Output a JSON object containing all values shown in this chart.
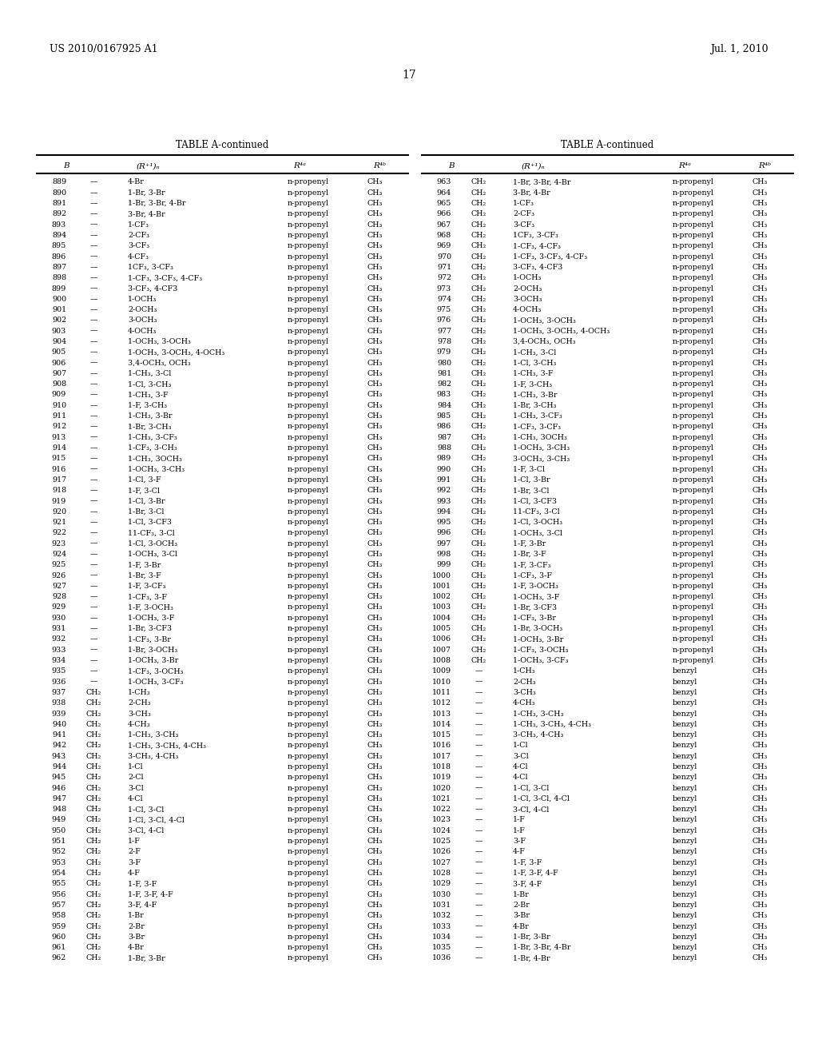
{
  "page_number": "17",
  "patent_number": "US 2010/0167925 A1",
  "patent_date": "Jul. 1, 2010",
  "table_title": "TABLE A-continued",
  "left_rows": [
    [
      "889",
      "—",
      "4-Br",
      "n-propenyl",
      "CH₃"
    ],
    [
      "890",
      "—",
      "1-Br, 3-Br",
      "n-propenyl",
      "CH₃"
    ],
    [
      "891",
      "—",
      "1-Br, 3-Br, 4-Br",
      "n-propenyl",
      "CH₃"
    ],
    [
      "892",
      "—",
      "3-Br, 4-Br",
      "n-propenyl",
      "CH₃"
    ],
    [
      "893",
      "—",
      "1-CF₃",
      "n-propenyl",
      "CH₃"
    ],
    [
      "894",
      "—",
      "2-CF₃",
      "n-propenyl",
      "CH₃"
    ],
    [
      "895",
      "—",
      "3-CF₃",
      "n-propenyl",
      "CH₃"
    ],
    [
      "896",
      "—",
      "4-CF₃",
      "n-propenyl",
      "CH₃"
    ],
    [
      "897",
      "—",
      "1CF₃, 3-CF₃",
      "n-propenyl",
      "CH₃"
    ],
    [
      "898",
      "—",
      "1-CF₃, 3-CF₃, 4-CF₃",
      "n-propenyl",
      "CH₃"
    ],
    [
      "899",
      "—",
      "3-CF₃, 4-CF3",
      "n-propenyl",
      "CH₃"
    ],
    [
      "900",
      "—",
      "1-OCH₃",
      "n-propenyl",
      "CH₃"
    ],
    [
      "901",
      "—",
      "2-OCH₃",
      "n-propenyl",
      "CH₃"
    ],
    [
      "902",
      "—",
      "3-OCH₃",
      "n-propenyl",
      "CH₃"
    ],
    [
      "903",
      "—",
      "4-OCH₃",
      "n-propenyl",
      "CH₃"
    ],
    [
      "904",
      "—",
      "1-OCH₃, 3-OCH₃",
      "n-propenyl",
      "CH₃"
    ],
    [
      "905",
      "—",
      "1-OCH₃, 3-OCH₃, 4-OCH₃",
      "n-propenyl",
      "CH₃"
    ],
    [
      "906",
      "—",
      "3,4-OCH₃, OCH₃",
      "n-propenyl",
      "CH₃"
    ],
    [
      "907",
      "—",
      "1-CH₃, 3-Cl",
      "n-propenyl",
      "CH₃"
    ],
    [
      "908",
      "—",
      "1-Cl, 3-CH₃",
      "n-propenyl",
      "CH₃"
    ],
    [
      "909",
      "—",
      "1-CH₃, 3-F",
      "n-propenyl",
      "CH₃"
    ],
    [
      "910",
      "—",
      "1-F, 3-CH₃",
      "n-propenyl",
      "CH₃"
    ],
    [
      "911",
      "—",
      "1-CH₃, 3-Br",
      "n-propenyl",
      "CH₃"
    ],
    [
      "912",
      "—",
      "1-Br, 3-CH₃",
      "n-propenyl",
      "CH₃"
    ],
    [
      "913",
      "—",
      "1-CH₃, 3-CF₃",
      "n-propenyl",
      "CH₃"
    ],
    [
      "914",
      "—",
      "1-CF₃, 3-CH₃",
      "n-propenyl",
      "CH₃"
    ],
    [
      "915",
      "—",
      "1-CH₃, 3OCH₃",
      "n-propenyl",
      "CH₃"
    ],
    [
      "916",
      "—",
      "1-OCH₃, 3-CH₃",
      "n-propenyl",
      "CH₃"
    ],
    [
      "917",
      "—",
      "1-Cl, 3-F",
      "n-propenyl",
      "CH₃"
    ],
    [
      "918",
      "—",
      "1-F, 3-Cl",
      "n-propenyl",
      "CH₃"
    ],
    [
      "919",
      "—",
      "1-Cl, 3-Br",
      "n-propenyl",
      "CH₃"
    ],
    [
      "920",
      "—",
      "1-Br, 3-Cl",
      "n-propenyl",
      "CH₃"
    ],
    [
      "921",
      "—",
      "1-Cl, 3-CF3",
      "n-propenyl",
      "CH₃"
    ],
    [
      "922",
      "—",
      "11-CF₃, 3-Cl",
      "n-propenyl",
      "CH₃"
    ],
    [
      "923",
      "—",
      "1-Cl, 3-OCH₃",
      "n-propenyl",
      "CH₃"
    ],
    [
      "924",
      "—",
      "1-OCH₃, 3-Cl",
      "n-propenyl",
      "CH₃"
    ],
    [
      "925",
      "—",
      "1-F, 3-Br",
      "n-propenyl",
      "CH₃"
    ],
    [
      "926",
      "—",
      "1-Br, 3-F",
      "n-propenyl",
      "CH₃"
    ],
    [
      "927",
      "—",
      "1-F, 3-CF₃",
      "n-propenyl",
      "CH₃"
    ],
    [
      "928",
      "—",
      "1-CF₃, 3-F",
      "n-propenyl",
      "CH₃"
    ],
    [
      "929",
      "—",
      "1-F, 3-OCH₃",
      "n-propenyl",
      "CH₃"
    ],
    [
      "930",
      "—",
      "1-OCH₃, 3-F",
      "n-propenyl",
      "CH₃"
    ],
    [
      "931",
      "—",
      "1-Br, 3-CF3",
      "n-propenyl",
      "CH₃"
    ],
    [
      "932",
      "—",
      "1-CF₃, 3-Br",
      "n-propenyl",
      "CH₃"
    ],
    [
      "933",
      "—",
      "1-Br, 3-OCH₃",
      "n-propenyl",
      "CH₃"
    ],
    [
      "934",
      "—",
      "1-OCH₃, 3-Br",
      "n-propenyl",
      "CH₃"
    ],
    [
      "935",
      "—",
      "1-CF₃, 3-OCH₃",
      "n-propenyl",
      "CH₃"
    ],
    [
      "936",
      "—",
      "1-OCH₃, 3-CF₃",
      "n-propenyl",
      "CH₃"
    ],
    [
      "937",
      "CH₂",
      "1-CH₃",
      "n-propenyl",
      "CH₃"
    ],
    [
      "938",
      "CH₂",
      "2-CH₃",
      "n-propenyl",
      "CH₃"
    ],
    [
      "939",
      "CH₂",
      "3-CH₃",
      "n-propenyl",
      "CH₃"
    ],
    [
      "940",
      "CH₂",
      "4-CH₃",
      "n-propenyl",
      "CH₃"
    ],
    [
      "941",
      "CH₂",
      "1-CH₃, 3-CH₃",
      "n-propenyl",
      "CH₃"
    ],
    [
      "942",
      "CH₂",
      "1-CH₃, 3-CH₃, 4-CH₃",
      "n-propenyl",
      "CH₃"
    ],
    [
      "943",
      "CH₂",
      "3-CH₃, 4-CH₃",
      "n-propenyl",
      "CH₃"
    ],
    [
      "944",
      "CH₂",
      "1-Cl",
      "n-propenyl",
      "CH₃"
    ],
    [
      "945",
      "CH₂",
      "2-Cl",
      "n-propenyl",
      "CH₃"
    ],
    [
      "946",
      "CH₂",
      "3-Cl",
      "n-propenyl",
      "CH₃"
    ],
    [
      "947",
      "CH₂",
      "4-Cl",
      "n-propenyl",
      "CH₃"
    ],
    [
      "948",
      "CH₂",
      "1-Cl, 3-Cl",
      "n-propenyl",
      "CH₃"
    ],
    [
      "949",
      "CH₂",
      "1-Cl, 3-Cl, 4-Cl",
      "n-propenyl",
      "CH₃"
    ],
    [
      "950",
      "CH₂",
      "3-Cl, 4-Cl",
      "n-propenyl",
      "CH₃"
    ],
    [
      "951",
      "CH₂",
      "1-F",
      "n-propenyl",
      "CH₃"
    ],
    [
      "952",
      "CH₂",
      "2-F",
      "n-propenyl",
      "CH₃"
    ],
    [
      "953",
      "CH₂",
      "3-F",
      "n-propenyl",
      "CH₃"
    ],
    [
      "954",
      "CH₂",
      "4-F",
      "n-propenyl",
      "CH₃"
    ],
    [
      "955",
      "CH₂",
      "1-F, 3-F",
      "n-propenyl",
      "CH₃"
    ],
    [
      "956",
      "CH₂",
      "1-F, 3-F, 4-F",
      "n-propenyl",
      "CH₃"
    ],
    [
      "957",
      "CH₂",
      "3-F, 4-F",
      "n-propenyl",
      "CH₃"
    ],
    [
      "958",
      "CH₂",
      "1-Br",
      "n-propenyl",
      "CH₃"
    ],
    [
      "959",
      "CH₂",
      "2-Br",
      "n-propenyl",
      "CH₃"
    ],
    [
      "960",
      "CH₂",
      "3-Br",
      "n-propenyl",
      "CH₃"
    ],
    [
      "961",
      "CH₂",
      "4-Br",
      "n-propenyl",
      "CH₃"
    ],
    [
      "962",
      "CH₂",
      "1-Br, 3-Br",
      "n-propenyl",
      "CH₃"
    ]
  ],
  "right_rows": [
    [
      "963",
      "CH₂",
      "1-Br, 3-Br, 4-Br",
      "n-propenyl",
      "CH₃"
    ],
    [
      "964",
      "CH₂",
      "3-Br, 4-Br",
      "n-propenyl",
      "CH₃"
    ],
    [
      "965",
      "CH₂",
      "1-CF₃",
      "n-propenyl",
      "CH₃"
    ],
    [
      "966",
      "CH₂",
      "2-CF₃",
      "n-propenyl",
      "CH₃"
    ],
    [
      "967",
      "CH₂",
      "3-CF₃",
      "n-propenyl",
      "CH₃"
    ],
    [
      "968",
      "CH₂",
      "1CF₃, 3-CF₃",
      "n-propenyl",
      "CH₃"
    ],
    [
      "969",
      "CH₂",
      "1-CF₃, 4-CF₃",
      "n-propenyl",
      "CH₃"
    ],
    [
      "970",
      "CH₂",
      "1-CF₃, 3-CF₃, 4-CF₃",
      "n-propenyl",
      "CH₃"
    ],
    [
      "971",
      "CH₂",
      "3-CF₃, 4-CF3",
      "n-propenyl",
      "CH₃"
    ],
    [
      "972",
      "CH₂",
      "1-OCH₃",
      "n-propenyl",
      "CH₃"
    ],
    [
      "973",
      "CH₂",
      "2-OCH₃",
      "n-propenyl",
      "CH₃"
    ],
    [
      "974",
      "CH₂",
      "3-OCH₃",
      "n-propenyl",
      "CH₃"
    ],
    [
      "975",
      "CH₂",
      "4-OCH₃",
      "n-propenyl",
      "CH₃"
    ],
    [
      "976",
      "CH₂",
      "1-OCH₃, 3-OCH₃",
      "n-propenyl",
      "CH₃"
    ],
    [
      "977",
      "CH₂",
      "1-OCH₃, 3-OCH₃, 4-OCH₃",
      "n-propenyl",
      "CH₃"
    ],
    [
      "978",
      "CH₂",
      "3,4-OCH₃, OCH₃",
      "n-propenyl",
      "CH₃"
    ],
    [
      "979",
      "CH₂",
      "1-CH₃, 3-Cl",
      "n-propenyl",
      "CH₃"
    ],
    [
      "980",
      "CH₂",
      "1-Cl, 3-CH₃",
      "n-propenyl",
      "CH₃"
    ],
    [
      "981",
      "CH₂",
      "1-CH₃, 3-F",
      "n-propenyl",
      "CH₃"
    ],
    [
      "982",
      "CH₂",
      "1-F, 3-CH₃",
      "n-propenyl",
      "CH₃"
    ],
    [
      "983",
      "CH₂",
      "1-CH₃, 3-Br",
      "n-propenyl",
      "CH₃"
    ],
    [
      "984",
      "CH₂",
      "1-Br, 3-CH₃",
      "n-propenyl",
      "CH₃"
    ],
    [
      "985",
      "CH₂",
      "1-CH₃, 3-CF₃",
      "n-propenyl",
      "CH₃"
    ],
    [
      "986",
      "CH₂",
      "1-CF₃, 3-CF₃",
      "n-propenyl",
      "CH₃"
    ],
    [
      "987",
      "CH₂",
      "1-CH₃, 3OCH₃",
      "n-propenyl",
      "CH₃"
    ],
    [
      "988",
      "CH₂",
      "1-OCH₃, 3-CH₃",
      "n-propenyl",
      "CH₃"
    ],
    [
      "989",
      "CH₂",
      "3-OCH₃, 3-CH₃",
      "n-propenyl",
      "CH₃"
    ],
    [
      "990",
      "CH₂",
      "1-F, 3-Cl",
      "n-propenyl",
      "CH₃"
    ],
    [
      "991",
      "CH₂",
      "1-Cl, 3-Br",
      "n-propenyl",
      "CH₃"
    ],
    [
      "992",
      "CH₂",
      "1-Br, 3-Cl",
      "n-propenyl",
      "CH₃"
    ],
    [
      "993",
      "CH₂",
      "1-Cl, 3-CF3",
      "n-propenyl",
      "CH₃"
    ],
    [
      "994",
      "CH₂",
      "11-CF₃, 3-Cl",
      "n-propenyl",
      "CH₃"
    ],
    [
      "995",
      "CH₂",
      "1-Cl, 3-OCH₃",
      "n-propenyl",
      "CH₃"
    ],
    [
      "996",
      "CH₂",
      "1-OCH₃, 3-Cl",
      "n-propenyl",
      "CH₃"
    ],
    [
      "997",
      "CH₂",
      "1-F, 3-Br",
      "n-propenyl",
      "CH₃"
    ],
    [
      "998",
      "CH₂",
      "1-Br, 3-F",
      "n-propenyl",
      "CH₃"
    ],
    [
      "999",
      "CH₂",
      "1-F, 3-CF₃",
      "n-propenyl",
      "CH₃"
    ],
    [
      "1000",
      "CH₂",
      "1-CF₃, 3-F",
      "n-propenyl",
      "CH₃"
    ],
    [
      "1001",
      "CH₂",
      "1-F, 3-OCH₃",
      "n-propenyl",
      "CH₃"
    ],
    [
      "1002",
      "CH₂",
      "1-OCH₃, 3-F",
      "n-propenyl",
      "CH₃"
    ],
    [
      "1003",
      "CH₂",
      "1-Br, 3-CF3",
      "n-propenyl",
      "CH₃"
    ],
    [
      "1004",
      "CH₂",
      "1-CF₃, 3-Br",
      "n-propenyl",
      "CH₃"
    ],
    [
      "1005",
      "CH₂",
      "1-Br, 3-OCH₃",
      "n-propenyl",
      "CH₃"
    ],
    [
      "1006",
      "CH₂",
      "1-OCH₃, 3-Br",
      "n-propenyl",
      "CH₃"
    ],
    [
      "1007",
      "CH₂",
      "1-CF₃, 3-OCH₃",
      "n-propenyl",
      "CH₃"
    ],
    [
      "1008",
      "CH₂",
      "1-OCH₃, 3-CF₃",
      "n-propenyl",
      "CH₃"
    ],
    [
      "1009",
      "—",
      "1-CH₃",
      "benzyl",
      "CH₃"
    ],
    [
      "1010",
      "—",
      "2-CH₃",
      "benzyl",
      "CH₃"
    ],
    [
      "1011",
      "—",
      "3-CH₃",
      "benzyl",
      "CH₃"
    ],
    [
      "1012",
      "—",
      "4-CH₃",
      "benzyl",
      "CH₃"
    ],
    [
      "1013",
      "—",
      "1-CH₃, 3-CH₃",
      "benzyl",
      "CH₃"
    ],
    [
      "1014",
      "—",
      "1-CH₃, 3-CH₃, 4-CH₃",
      "benzyl",
      "CH₃"
    ],
    [
      "1015",
      "—",
      "3-CH₃, 4-CH₃",
      "benzyl",
      "CH₃"
    ],
    [
      "1016",
      "—",
      "1-Cl",
      "benzyl",
      "CH₃"
    ],
    [
      "1017",
      "—",
      "3-Cl",
      "benzyl",
      "CH₃"
    ],
    [
      "1018",
      "—",
      "4-Cl",
      "benzyl",
      "CH₃"
    ],
    [
      "1019",
      "—",
      "4-Cl",
      "benzyl",
      "CH₃"
    ],
    [
      "1020",
      "—",
      "1-Cl, 3-Cl",
      "benzyl",
      "CH₃"
    ],
    [
      "1021",
      "—",
      "1-Cl, 3-Cl, 4-Cl",
      "benzyl",
      "CH₃"
    ],
    [
      "1022",
      "—",
      "3-Cl, 4-Cl",
      "benzyl",
      "CH₃"
    ],
    [
      "1023",
      "—",
      "1-F",
      "benzyl",
      "CH₃"
    ],
    [
      "1024",
      "—",
      "1-F",
      "benzyl",
      "CH₃"
    ],
    [
      "1025",
      "—",
      "3-F",
      "benzyl",
      "CH₃"
    ],
    [
      "1026",
      "—",
      "4-F",
      "benzyl",
      "CH₃"
    ],
    [
      "1027",
      "—",
      "1-F, 3-F",
      "benzyl",
      "CH₃"
    ],
    [
      "1028",
      "—",
      "1-F, 3-F, 4-F",
      "benzyl",
      "CH₃"
    ],
    [
      "1029",
      "—",
      "3-F, 4-F",
      "benzyl",
      "CH₃"
    ],
    [
      "1030",
      "—",
      "1-Br",
      "benzyl",
      "CH₃"
    ],
    [
      "1031",
      "—",
      "2-Br",
      "benzyl",
      "CH₃"
    ],
    [
      "1032",
      "—",
      "3-Br",
      "benzyl",
      "CH₃"
    ],
    [
      "1033",
      "—",
      "4-Br",
      "benzyl",
      "CH₃"
    ],
    [
      "1034",
      "—",
      "1-Br, 3-Br",
      "benzyl",
      "CH₃"
    ],
    [
      "1035",
      "—",
      "1-Br, 3-Br, 4-Br",
      "benzyl",
      "CH₃"
    ],
    [
      "1036",
      "—",
      "1-Br, 4-Br",
      "benzyl",
      "CH₃"
    ]
  ],
  "bg_color": "#ffffff",
  "text_color": "#000000",
  "font_size": 6.8,
  "header_font_size": 7.5,
  "patent_fontsize": 9.0,
  "page_num_fontsize": 10.0,
  "table_title_fontsize": 8.5
}
